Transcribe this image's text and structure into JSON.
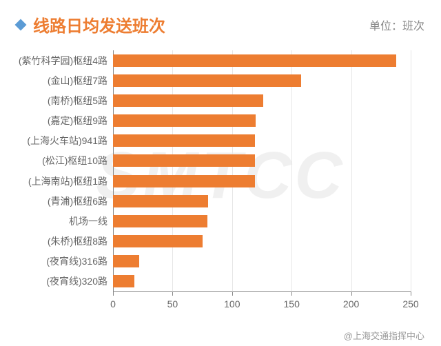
{
  "header": {
    "title": "线路日均发送班次",
    "title_color": "#ed7d31",
    "title_fontsize": 24,
    "diamond_color": "#5b9bd5",
    "unit_label": "单位：班次",
    "unit_color": "#888888"
  },
  "watermark": {
    "text": "SMTCC",
    "color": "rgba(200,200,200,0.28)"
  },
  "attribution": "@上海交通指挥中心",
  "chart": {
    "type": "bar-horizontal",
    "background_color": "#ffffff",
    "grid_color": "#e6e6e6",
    "axis_color": "#888888",
    "label_color": "#666666",
    "label_fontsize": 14,
    "bar_color": "#ed7d31",
    "bar_height_ratio": 0.62,
    "xlim": [
      0,
      250
    ],
    "xtick_step": 50,
    "xticks": [
      0,
      50,
      100,
      150,
      200,
      250
    ],
    "categories": [
      "(紫竹科学园)枢纽4路",
      "(金山)枢纽7路",
      "(南桥)枢纽5路",
      "(嘉定)枢纽9路",
      "(上海火车站)941路",
      "(松江)枢纽10路",
      "(上海南站)枢纽1路",
      "(青浦)枢纽6路",
      "机场一线",
      "(朱桥)枢纽8路",
      "(夜宵线)316路",
      "(夜宵线)320路"
    ],
    "values": [
      238,
      158,
      126,
      120,
      119,
      119,
      119,
      80,
      79,
      75,
      22,
      18
    ]
  }
}
